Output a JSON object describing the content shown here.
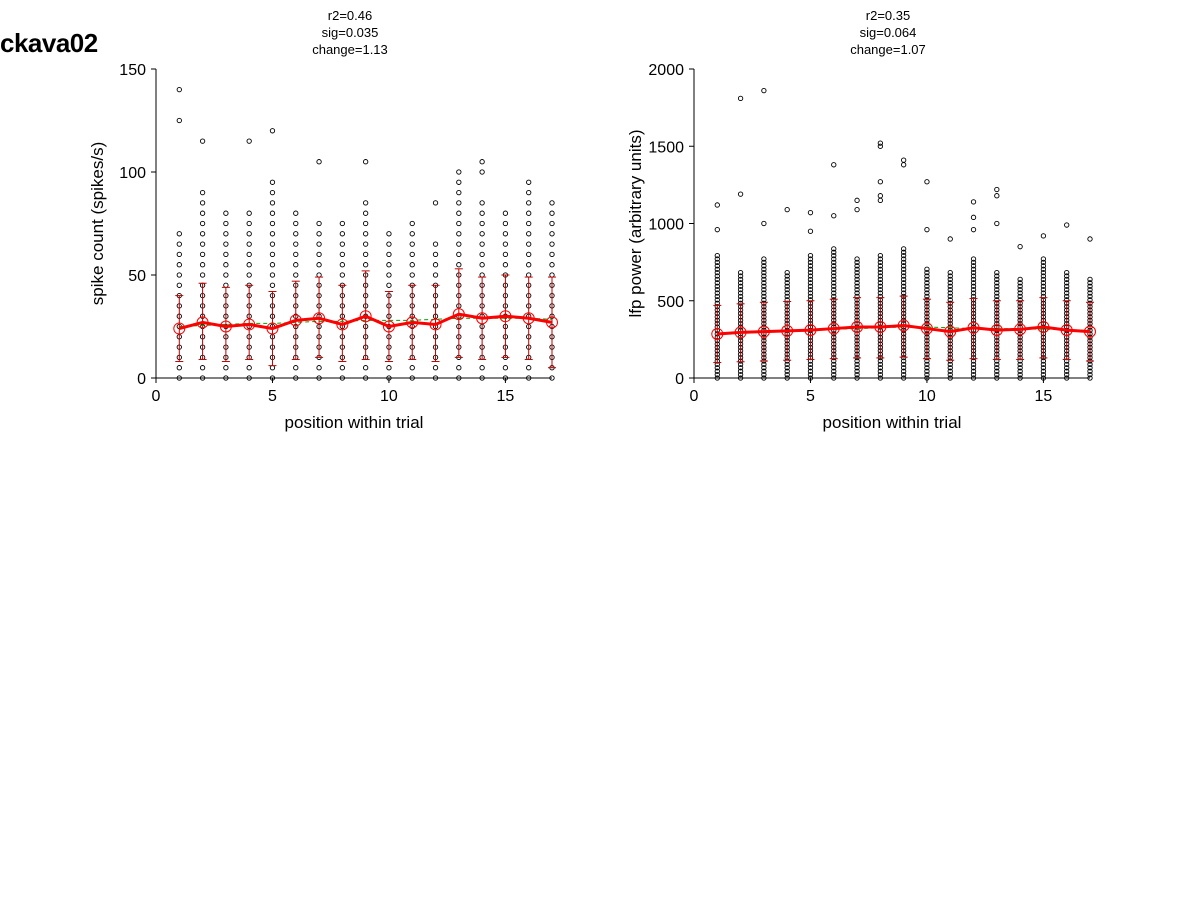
{
  "figure": {
    "title": "ckava02"
  },
  "chart_data": [
    {
      "type": "scatter",
      "stats": {
        "r2": "r2=0.46",
        "sig": "sig=0.035",
        "change": "change=1.13"
      },
      "xlabel": "position within trial",
      "ylabel": "spike count (spikes/s)",
      "xlim": [
        0,
        17
      ],
      "ylim": [
        0,
        150
      ],
      "xticks": [
        0,
        5,
        10,
        15
      ],
      "yticks": [
        0,
        50,
        100,
        150
      ],
      "x": [
        1,
        2,
        3,
        4,
        5,
        6,
        7,
        8,
        9,
        10,
        11,
        12,
        13,
        14,
        15,
        16,
        17
      ],
      "series": [
        {
          "values": [
            24,
            27,
            25,
            26,
            24,
            28,
            29,
            26,
            30,
            25,
            27,
            26,
            31,
            29,
            30,
            29,
            27
          ],
          "error_low": [
            8,
            9,
            8,
            9,
            6,
            9,
            10,
            8,
            9,
            8,
            9,
            8,
            10,
            9,
            10,
            9,
            5
          ],
          "error_high": [
            40,
            46,
            44,
            45,
            42,
            47,
            49,
            45,
            52,
            42,
            45,
            45,
            53,
            49,
            50,
            49,
            49
          ]
        }
      ],
      "trend": [
        25,
        25.5,
        26,
        26.5,
        26.5,
        27,
        27.5,
        27.5,
        28,
        28,
        28,
        28.5,
        29,
        29,
        29,
        29,
        28.5
      ],
      "scatter_points": {
        "spacing": 5,
        "tops": [
          70,
          90,
          80,
          80,
          95,
          80,
          75,
          75,
          85,
          70,
          75,
          65,
          90,
          85,
          80,
          90,
          85
        ],
        "outliers": [
          [
            140,
            125
          ],
          [
            115
          ],
          [],
          [
            115
          ],
          [
            120
          ],
          [],
          [
            105
          ],
          [],
          [
            105
          ],
          [],
          [],
          [
            85
          ],
          [
            100,
            95
          ],
          [
            105,
            100
          ],
          [],
          [
            95
          ],
          []
        ]
      },
      "colors": {
        "points": "#000000",
        "mean": "#ff0000",
        "errorbar": "#c00000",
        "trend": "#00a000"
      }
    },
    {
      "type": "scatter",
      "stats": {
        "r2": "r2=0.35",
        "sig": "sig=0.064",
        "change": "change=1.07"
      },
      "xlabel": "position within trial",
      "ylabel": "lfp power (arbitrary units)",
      "xlim": [
        0,
        17
      ],
      "ylim": [
        0,
        2000
      ],
      "xticks": [
        0,
        5,
        10,
        15
      ],
      "yticks": [
        0,
        500,
        1000,
        1500,
        2000
      ],
      "x": [
        1,
        2,
        3,
        4,
        5,
        6,
        7,
        8,
        9,
        10,
        11,
        12,
        13,
        14,
        15,
        16,
        17
      ],
      "series": [
        {
          "values": [
            285,
            295,
            300,
            305,
            310,
            320,
            330,
            330,
            340,
            320,
            300,
            325,
            310,
            315,
            330,
            310,
            300
          ],
          "error_low": [
            100,
            105,
            110,
            115,
            120,
            125,
            130,
            130,
            135,
            125,
            115,
            125,
            120,
            120,
            130,
            120,
            110
          ],
          "error_high": [
            470,
            480,
            490,
            495,
            500,
            510,
            520,
            520,
            530,
            510,
            490,
            515,
            500,
            500,
            520,
            500,
            490
          ]
        }
      ],
      "trend": [
        290,
        295,
        300,
        305,
        310,
        315,
        320,
        325,
        330,
        330,
        325,
        320,
        320,
        318,
        316,
        312,
        308
      ],
      "scatter_points": {
        "spacing": 22,
        "tops": [
          800,
          700,
          780,
          700,
          800,
          850,
          780,
          800,
          850,
          720,
          700,
          780,
          700,
          650,
          780,
          700,
          650
        ],
        "outliers": [
          [
            1120,
            960
          ],
          [
            1810,
            1190
          ],
          [
            1860,
            1000
          ],
          [
            1090
          ],
          [
            1070,
            950
          ],
          [
            1380,
            1050
          ],
          [
            1150,
            1090
          ],
          [
            1520,
            1500,
            1270,
            1180,
            1150
          ],
          [
            1410,
            1380
          ],
          [
            1270,
            960
          ],
          [
            900
          ],
          [
            1140,
            1040,
            960
          ],
          [
            1220,
            1180,
            1000
          ],
          [
            850
          ],
          [
            920
          ],
          [
            990
          ],
          [
            900
          ]
        ]
      },
      "colors": {
        "points": "#000000",
        "mean": "#ff0000",
        "errorbar": "#c00000",
        "trend": "#00a000"
      }
    }
  ]
}
